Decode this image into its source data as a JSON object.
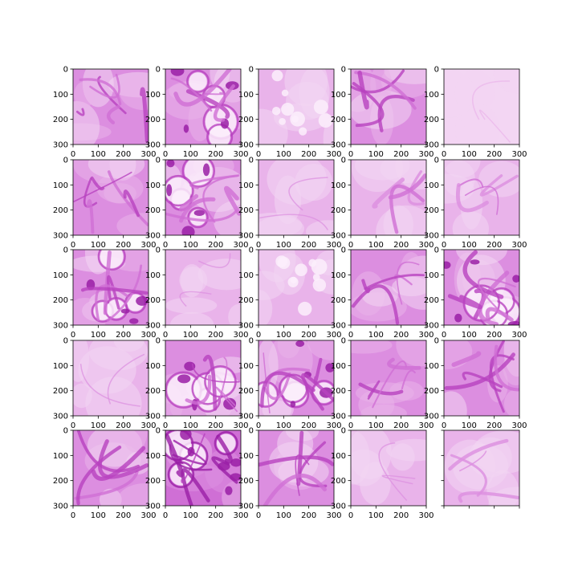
{
  "figure": {
    "rows": 5,
    "cols": 5,
    "x_ticks": [
      "0",
      "100",
      "200",
      "300"
    ],
    "y_ticks": [
      "0",
      "100",
      "200",
      "300"
    ],
    "tint_colors": [
      "#f3d6f3",
      "#e9b3ea",
      "#dc8ee0",
      "#cf6fd5",
      "#b842bf",
      "#9a1fa6"
    ],
    "panels": [
      {
        "id": "r1c1",
        "density": 0.75,
        "style": "veins"
      },
      {
        "id": "r1c2",
        "density": 0.6,
        "style": "cells"
      },
      {
        "id": "r1c3",
        "density": 0.3,
        "style": "bubbles"
      },
      {
        "id": "r1c4",
        "density": 0.6,
        "style": "veins"
      },
      {
        "id": "r1c5",
        "density": 0.15,
        "style": "pale"
      },
      {
        "id": "r2c1",
        "density": 0.75,
        "style": "veins"
      },
      {
        "id": "r2c2",
        "density": 0.8,
        "style": "cells"
      },
      {
        "id": "r2c3",
        "density": 0.25,
        "style": "pale"
      },
      {
        "id": "r2c4",
        "density": 0.45,
        "style": "veins"
      },
      {
        "id": "r2c5",
        "density": 0.35,
        "style": "veins"
      },
      {
        "id": "r3c1",
        "density": 0.6,
        "style": "cells"
      },
      {
        "id": "r3c2",
        "density": 0.35,
        "style": "pale"
      },
      {
        "id": "r3c3",
        "density": 0.45,
        "style": "bubbles"
      },
      {
        "id": "r3c4",
        "density": 0.5,
        "style": "veins"
      },
      {
        "id": "r3c5",
        "density": 0.7,
        "style": "cells"
      },
      {
        "id": "r4c1",
        "density": 0.45,
        "style": "pale"
      },
      {
        "id": "r4c2",
        "density": 0.6,
        "style": "cells"
      },
      {
        "id": "r4c3",
        "density": 0.75,
        "style": "cells"
      },
      {
        "id": "r4c4",
        "density": 0.55,
        "style": "veins"
      },
      {
        "id": "r4c5",
        "density": 0.7,
        "style": "veins"
      },
      {
        "id": "r5c1",
        "density": 0.5,
        "style": "veins"
      },
      {
        "id": "r5c2",
        "density": 0.9,
        "style": "cells"
      },
      {
        "id": "r5c3",
        "density": 0.6,
        "style": "veins"
      },
      {
        "id": "r5c4",
        "density": 0.4,
        "style": "pale"
      },
      {
        "id": "r5c5",
        "density": 0.45,
        "style": "veins"
      }
    ],
    "no_tick_labels_panels": [
      "r5c5"
    ]
  }
}
